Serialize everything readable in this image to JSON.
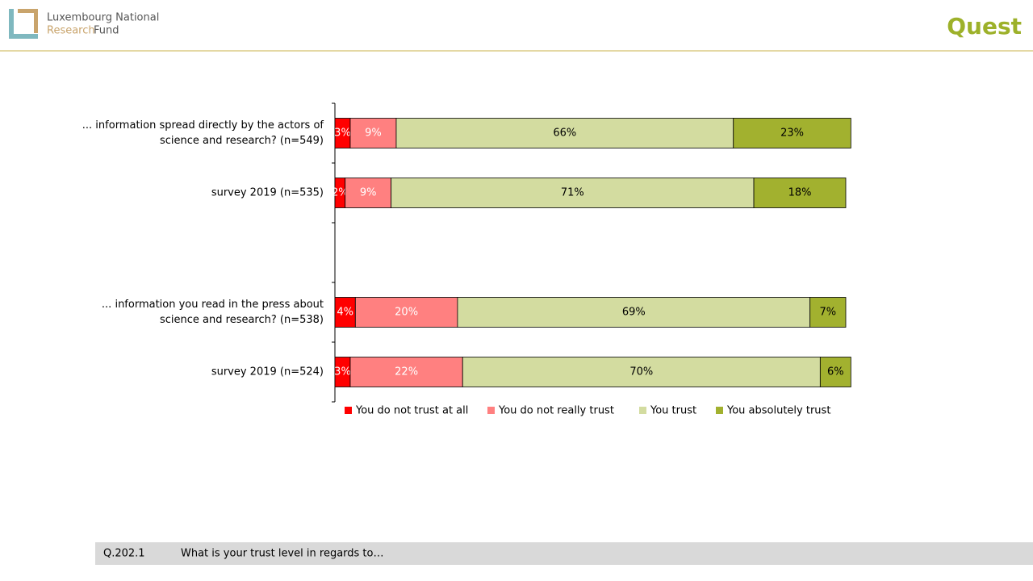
{
  "header": {
    "logo_line1": "Luxembourg National",
    "logo_line2a": "Research",
    "logo_line2b": "Fund",
    "brand": "Quest"
  },
  "chart_data": {
    "type": "stacked-barh",
    "categories": [
      "... information spread directly by the actors of science and research? (n=549)",
      "survey 2019 (n=535)",
      null,
      "... information you read in the press about science and research? (n=538)",
      "survey 2019 (n=524)"
    ],
    "xlim": [
      0,
      100
    ],
    "series": [
      {
        "name": "You do not trust at all",
        "color": "#ff0000",
        "label_color": "#ffffff",
        "values": [
          3,
          2,
          null,
          4,
          3
        ],
        "value_labels": [
          "3%",
          "2%",
          null,
          "4%",
          "3%"
        ]
      },
      {
        "name": "You do not really trust",
        "color": "#ff8080",
        "label_color": "#ffffff",
        "values": [
          9,
          9,
          null,
          20,
          22
        ],
        "value_labels": [
          "9%",
          "9%",
          null,
          "20%",
          "22%"
        ]
      },
      {
        "name": "You trust",
        "color": "#d3dca0",
        "label_color": "#000000",
        "values": [
          66,
          71,
          null,
          69,
          70
        ],
        "value_labels": [
          "66%",
          "71%",
          null,
          "69%",
          "70%"
        ]
      },
      {
        "name": "You absolutely trust",
        "color": "#a2b12f",
        "label_color": "#000000",
        "values": [
          23,
          18,
          null,
          7,
          6
        ],
        "value_labels": [
          "23%",
          "18%",
          null,
          "7%",
          "6%"
        ]
      }
    ]
  },
  "footer": {
    "code": "Q.202.1",
    "question": "What is your trust level in regards to…"
  }
}
